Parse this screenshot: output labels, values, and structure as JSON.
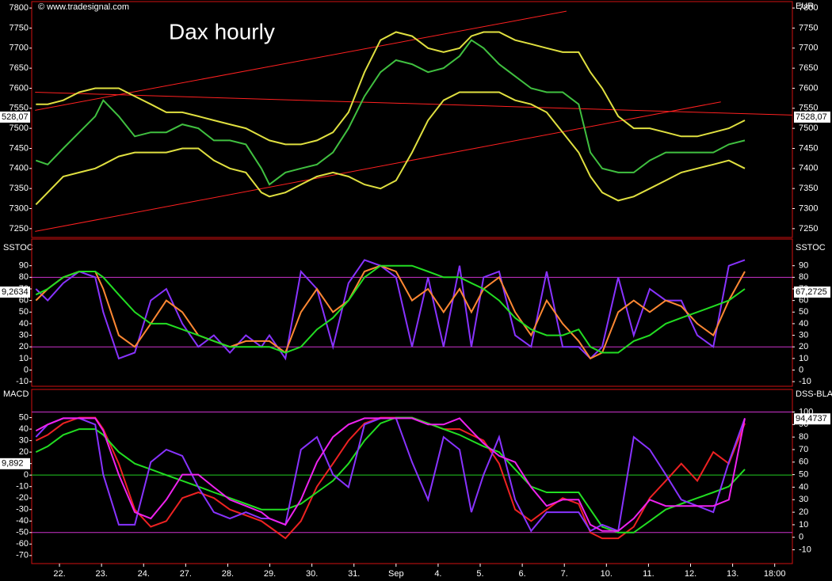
{
  "source": "© www.tradesignal.com",
  "chart_data": [
    {
      "type": "line",
      "title": "Dax hourly",
      "y_label": "EUR",
      "ylim": [
        7228,
        7816
      ],
      "yticks": [
        7250,
        7300,
        7350,
        7400,
        7450,
        7500,
        7550,
        7600,
        7650,
        7700,
        7750,
        7800
      ],
      "series": [
        {
          "color": "#40c040",
          "values": [
            7420,
            7410,
            7450,
            7490,
            7530,
            7570,
            7530,
            7480,
            7490,
            7490,
            7510,
            7500,
            7470,
            7470,
            7460,
            7400,
            7360,
            7390,
            7400,
            7410,
            7440,
            7500,
            7580,
            7640,
            7670,
            7660,
            7640,
            7650,
            7680,
            7720,
            7700,
            7660,
            7630,
            7600,
            7590,
            7590,
            7560,
            7440,
            7400,
            7390,
            7390,
            7420,
            7440,
            7440,
            7440,
            7440,
            7460,
            7470
          ]
        },
        {
          "color": "#e0e040",
          "values": [
            7560,
            7560,
            7570,
            7590,
            7600,
            7600,
            7600,
            7580,
            7560,
            7540,
            7540,
            7530,
            7520,
            7510,
            7500,
            7480,
            7470,
            7460,
            7460,
            7470,
            7490,
            7540,
            7640,
            7720,
            7740,
            7730,
            7700,
            7690,
            7700,
            7730,
            7740,
            7740,
            7720,
            7710,
            7700,
            7690,
            7690,
            7640,
            7600,
            7530,
            7500,
            7500,
            7490,
            7480,
            7480,
            7490,
            7500,
            7520
          ]
        },
        {
          "color": "#e0e040",
          "values": [
            7310,
            7340,
            7380,
            7390,
            7400,
            7410,
            7430,
            7440,
            7440,
            7440,
            7450,
            7450,
            7420,
            7400,
            7390,
            7340,
            7330,
            7340,
            7360,
            7380,
            7390,
            7380,
            7360,
            7350,
            7370,
            7440,
            7520,
            7570,
            7590,
            7590,
            7590,
            7590,
            7570,
            7560,
            7540,
            7490,
            7440,
            7380,
            7340,
            7320,
            7330,
            7350,
            7370,
            7390,
            7400,
            7410,
            7420,
            7400
          ]
        }
      ],
      "lines": [
        {
          "color": "#ff2020",
          "x": [
            0.42,
            13.05
          ],
          "y": [
            7545,
            7792
          ]
        },
        {
          "color": "#ff2020",
          "x": [
            0.42,
            16.72
          ],
          "y": [
            7243,
            7566
          ]
        },
        {
          "color": "#ff2020",
          "x": [
            0.42,
            18.42
          ],
          "y": [
            7590,
            7533
          ]
        }
      ],
      "tags": [
        {
          "side": "left",
          "label": "528,07"
        },
        {
          "side": "right",
          "value": 7528.07,
          "label": "7528,07"
        }
      ]
    },
    {
      "type": "line",
      "title": "SSTOC",
      "ylim": [
        -14,
        113
      ],
      "yticks": [
        -10,
        0,
        10,
        20,
        30,
        40,
        50,
        60,
        70,
        80,
        90
      ],
      "hlines": [
        {
          "value": 80,
          "color": "#cc33cc"
        },
        {
          "value": 20,
          "color": "#cc33cc"
        }
      ],
      "series": [
        {
          "color": "#8833ff",
          "values": [
            70,
            60,
            75,
            85,
            80,
            50,
            10,
            15,
            60,
            70,
            40,
            20,
            30,
            15,
            30,
            20,
            30,
            10,
            85,
            70,
            20,
            75,
            95,
            90,
            80,
            20,
            80,
            20,
            90,
            20,
            80,
            85,
            30,
            20,
            85,
            20,
            20,
            10,
            20,
            80,
            30,
            70,
            60,
            60,
            30,
            20,
            90,
            95
          ]
        },
        {
          "color": "#ff8833",
          "values": [
            60,
            70,
            80,
            85,
            85,
            70,
            30,
            20,
            40,
            60,
            50,
            30,
            25,
            20,
            25,
            25,
            25,
            15,
            50,
            70,
            50,
            60,
            85,
            90,
            85,
            60,
            70,
            50,
            70,
            50,
            70,
            80,
            50,
            30,
            60,
            40,
            25,
            10,
            15,
            50,
            60,
            50,
            60,
            55,
            40,
            30,
            60,
            85
          ]
        },
        {
          "color": "#22dd22",
          "values": [
            65,
            70,
            80,
            85,
            85,
            80,
            65,
            50,
            40,
            40,
            35,
            30,
            25,
            20,
            20,
            20,
            20,
            15,
            20,
            35,
            45,
            60,
            80,
            90,
            90,
            90,
            85,
            80,
            80,
            75,
            70,
            60,
            45,
            35,
            30,
            30,
            35,
            20,
            15,
            15,
            25,
            30,
            40,
            45,
            50,
            55,
            60,
            70
          ]
        }
      ],
      "tags": [
        {
          "side": "left",
          "label": "9,2634"
        },
        {
          "side": "right",
          "value": 67.2725,
          "label": "67,2725"
        }
      ]
    },
    {
      "type": "line",
      "title": "MACD",
      "y2_label": "DSS-BLA",
      "x": [
        0.44,
        0.72,
        1.09,
        1.47,
        1.85,
        2.04,
        2.41,
        2.79,
        3.17,
        3.54,
        3.92,
        4.3,
        4.67,
        5.05,
        5.43,
        5.8,
        5.99,
        6.37,
        6.74,
        7.12,
        7.5,
        7.87,
        8.25,
        8.63,
        9.0,
        9.38,
        9.76,
        10.13,
        10.51,
        10.79,
        11.08,
        11.45,
        11.83,
        12.21,
        12.58,
        12.96,
        13.34,
        13.62,
        13.9,
        14.28,
        14.65,
        15.03,
        15.41,
        15.78,
        16.16,
        16.54,
        16.91,
        17.29
      ],
      "xlim": [
        0.34,
        18.42
      ],
      "xticks": [
        {
          "value": 1,
          "label": "22."
        },
        {
          "value": 2,
          "label": "23."
        },
        {
          "value": 3,
          "label": "24."
        },
        {
          "value": 4,
          "label": "27."
        },
        {
          "value": 5,
          "label": "28."
        },
        {
          "value": 6,
          "label": "29."
        },
        {
          "value": 7,
          "label": "30."
        },
        {
          "value": 8,
          "label": "31."
        },
        {
          "value": 9,
          "label": "Sep"
        },
        {
          "value": 10,
          "label": "4."
        },
        {
          "value": 11,
          "label": "5."
        },
        {
          "value": 12,
          "label": "6."
        },
        {
          "value": 13,
          "label": "7."
        },
        {
          "value": 14,
          "label": "10."
        },
        {
          "value": 15,
          "label": "11."
        },
        {
          "value": 16,
          "label": "12."
        },
        {
          "value": 17,
          "label": "13."
        },
        {
          "value": 18,
          "label": "18:00"
        }
      ],
      "ylim": [
        -77,
        74.5
      ],
      "yticks": [
        -70,
        -60,
        -50,
        -40,
        -30,
        -20,
        -10,
        0,
        10,
        20,
        30,
        40,
        50
      ],
      "y2lim": [
        -21,
        118
      ],
      "y2ticks": [
        -10,
        0,
        10,
        20,
        30,
        40,
        50,
        60,
        70,
        80,
        90,
        100
      ],
      "hlines": [
        {
          "value": 0,
          "color": "#22cc22"
        },
        {
          "value": -50,
          "color": "#cc33cc"
        },
        {
          "value": 100,
          "color": "#cc33cc",
          "axis": "y2"
        }
      ],
      "series": [
        {
          "color": "#ee2222",
          "values": [
            30,
            35,
            45,
            50,
            50,
            40,
            10,
            -30,
            -45,
            -40,
            -20,
            -15,
            -20,
            -30,
            -35,
            -40,
            -45,
            -55,
            -40,
            -10,
            10,
            30,
            45,
            50,
            50,
            50,
            45,
            40,
            40,
            35,
            30,
            10,
            -30,
            -40,
            -30,
            -20,
            -25,
            -50,
            -55,
            -55,
            -45,
            -20,
            -5,
            10,
            -5,
            20,
            10,
            45
          ]
        },
        {
          "color": "#22dd22",
          "values": [
            20,
            25,
            35,
            40,
            40,
            35,
            20,
            10,
            5,
            0,
            -5,
            -10,
            -15,
            -20,
            -25,
            -30,
            -30,
            -30,
            -25,
            -15,
            -5,
            10,
            30,
            45,
            50,
            50,
            45,
            40,
            35,
            30,
            25,
            20,
            5,
            -10,
            -15,
            -15,
            -15,
            -30,
            -45,
            -50,
            -50,
            -40,
            -30,
            -25,
            -20,
            -15,
            -10,
            5
          ]
        },
        {
          "color": "#8833ff",
          "axis": "y2",
          "values": [
            80,
            90,
            95,
            95,
            90,
            50,
            10,
            10,
            60,
            70,
            65,
            40,
            20,
            15,
            20,
            15,
            15,
            10,
            70,
            80,
            50,
            40,
            90,
            95,
            95,
            60,
            30,
            80,
            70,
            20,
            50,
            80,
            30,
            5,
            20,
            20,
            20,
            5,
            10,
            5,
            80,
            70,
            50,
            30,
            25,
            20,
            60,
            95
          ]
        },
        {
          "color": "#ee22ee",
          "axis": "y2",
          "values": [
            85,
            90,
            95,
            95,
            95,
            85,
            50,
            20,
            15,
            30,
            50,
            50,
            40,
            30,
            25,
            20,
            15,
            10,
            30,
            60,
            80,
            90,
            95,
            95,
            95,
            95,
            90,
            90,
            95,
            85,
            75,
            65,
            60,
            40,
            25,
            30,
            30,
            10,
            5,
            5,
            15,
            30,
            25,
            25,
            25,
            25,
            30,
            95
          ]
        }
      ],
      "tags": [
        {
          "side": "left",
          "value": 9.892,
          "label": "9,892"
        },
        {
          "side": "right",
          "axis": "y2",
          "value": 94.4737,
          "label": "94,4737"
        }
      ]
    }
  ]
}
